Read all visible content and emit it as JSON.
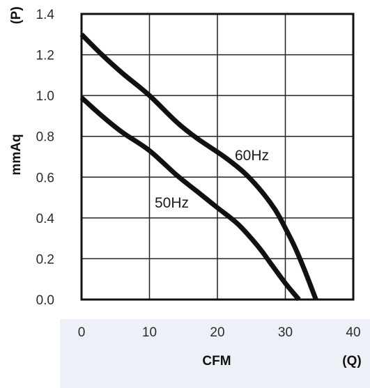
{
  "chart_data": {
    "type": "line",
    "xlabel": "CFM",
    "x_symbol": "(Q)",
    "ylabel": "mmAq",
    "y_symbol": "(P)",
    "xlim": [
      0,
      40
    ],
    "ylim": [
      0,
      1.4
    ],
    "x_ticks": [
      "0",
      "10",
      "20",
      "30",
      "40"
    ],
    "y_ticks": [
      "0.0",
      "0.2",
      "0.4",
      "0.6",
      "0.8",
      "1.0",
      "1.2",
      "1.4"
    ],
    "grid": true,
    "series": [
      {
        "name": "60Hz",
        "x": [
          0,
          3,
          6,
          10,
          14,
          17,
          21,
          24,
          26.5,
          28.5,
          30,
          31.5,
          33,
          34.5
        ],
        "y": [
          1.3,
          1.2,
          1.11,
          1.0,
          0.87,
          0.79,
          0.7,
          0.62,
          0.53,
          0.44,
          0.35,
          0.25,
          0.13,
          0.0
        ]
      },
      {
        "name": "50Hz",
        "x": [
          0,
          3,
          6,
          10,
          14,
          17,
          20,
          23,
          26,
          28,
          30,
          32
        ],
        "y": [
          0.99,
          0.9,
          0.82,
          0.73,
          0.61,
          0.53,
          0.45,
          0.37,
          0.26,
          0.17,
          0.08,
          0.0
        ]
      }
    ],
    "colors": {
      "line": "#111111",
      "grid": "#222222",
      "axis_band": "#eef0f8"
    }
  }
}
